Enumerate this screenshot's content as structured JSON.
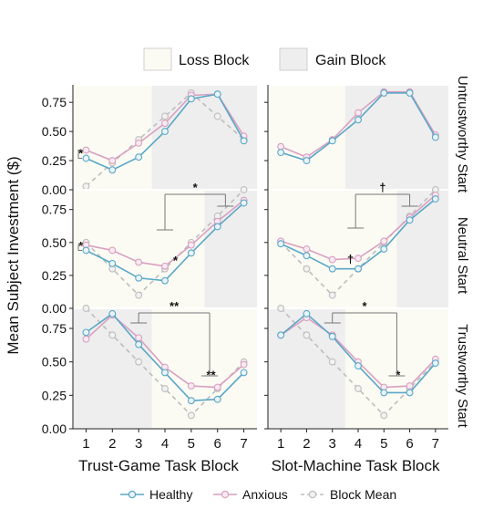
{
  "chart_data": {
    "type": "line",
    "ylabel": "Mean Subject Investment ($)",
    "y_ticks": [
      "0.00",
      "0.25",
      "0.50",
      "0.75"
    ],
    "ylim": [
      0,
      0.9
    ],
    "x_ticks": [
      "1",
      "2",
      "3",
      "4",
      "5",
      "6",
      "7"
    ],
    "xlim": [
      0.5,
      7.5
    ],
    "xlabels": [
      "Trust-Game Task Block",
      "Slot-Machine Task Block"
    ],
    "row_labels": [
      "Untrustworthy Start",
      "Neutral Start",
      "Trustworthy Start"
    ],
    "block_legend": [
      {
        "label": "Loss Block",
        "color": "#fbfbf4"
      },
      {
        "label": "Gain Block",
        "color": "#eeeeee"
      }
    ],
    "series_legend": [
      {
        "label": "Healthy",
        "color": "#5aa7c7",
        "dashed": false
      },
      {
        "label": "Anxious",
        "color": "#d9a0c0",
        "dashed": false
      },
      {
        "label": "Block Mean",
        "color": "#bdbdbd",
        "dashed": true
      }
    ],
    "colors": {
      "healthy": "#5aa7c7",
      "anxious": "#d9a0c0",
      "block_mean": "#bdbdbd",
      "gain_shade": "#eeeeee",
      "loss_shade": "#fbfbf4"
    },
    "panels": [
      {
        "row": 0,
        "col": 0,
        "gain_span": [
          3.5,
          7.5
        ],
        "loss_span": [
          0.5,
          3.5
        ],
        "healthy": [
          0.27,
          0.17,
          0.28,
          0.5,
          0.78,
          0.82,
          0.42
        ],
        "anxious": [
          0.34,
          0.25,
          0.4,
          0.57,
          0.81,
          0.82,
          0.46
        ],
        "block_mean": [
          0.03,
          0.23,
          0.43,
          0.63,
          0.83,
          0.63,
          0.43
        ],
        "annotations": [
          {
            "text": "*",
            "x": 0.8,
            "y": 0.31
          }
        ]
      },
      {
        "row": 0,
        "col": 1,
        "gain_span": [
          3.5,
          7.5
        ],
        "loss_span": [
          0.5,
          3.5
        ],
        "healthy": [
          0.32,
          0.25,
          0.42,
          0.6,
          0.83,
          0.83,
          0.45
        ],
        "anxious": [
          0.37,
          0.28,
          0.43,
          0.66,
          0.84,
          0.84,
          0.47
        ],
        "block_mean": [],
        "annotations": []
      },
      {
        "row": 1,
        "col": 0,
        "gain_span": [
          5.5,
          7.5
        ],
        "loss_span": [
          0.5,
          5.5
        ],
        "healthy": [
          0.44,
          0.34,
          0.23,
          0.21,
          0.42,
          0.62,
          0.8
        ],
        "anxious": [
          0.48,
          0.44,
          0.35,
          0.32,
          0.48,
          0.66,
          0.82
        ],
        "block_mean": [
          0.5,
          0.3,
          0.1,
          0.3,
          0.5,
          0.7,
          0.9
        ],
        "annotations": [
          {
            "text": "*",
            "x": 4.4,
            "y": 0.36
          },
          {
            "text": "*",
            "x": 0.8,
            "y": 0.47
          }
        ]
      },
      {
        "row": 1,
        "col": 1,
        "gain_span": [
          5.5,
          7.5
        ],
        "loss_span": [
          0.5,
          5.5
        ],
        "healthy": [
          0.49,
          0.4,
          0.3,
          0.3,
          0.45,
          0.67,
          0.83
        ],
        "anxious": [
          0.51,
          0.45,
          0.37,
          0.38,
          0.51,
          0.69,
          0.86
        ],
        "block_mean": [
          0.5,
          0.3,
          0.1,
          0.3,
          0.5,
          0.7,
          0.9
        ],
        "annotations": [
          {
            "text": "†",
            "x": 3.7,
            "y": 0.37
          }
        ]
      },
      {
        "row": 2,
        "col": 0,
        "gain_span": [
          0.5,
          3.5
        ],
        "loss_span": [
          3.5,
          7.5
        ],
        "healthy": [
          0.72,
          0.86,
          0.63,
          0.42,
          0.21,
          0.22,
          0.42
        ],
        "anxious": [
          0.67,
          0.85,
          0.68,
          0.46,
          0.32,
          0.31,
          0.48
        ],
        "block_mean": [
          0.9,
          0.7,
          0.5,
          0.3,
          0.1,
          0.3,
          0.5
        ],
        "annotations": [
          {
            "text": "**",
            "x": 5.75,
            "y": 0.4
          }
        ]
      },
      {
        "row": 2,
        "col": 1,
        "gain_span": [
          0.5,
          3.5
        ],
        "loss_span": [
          3.5,
          7.5
        ],
        "healthy": [
          0.7,
          0.86,
          0.69,
          0.47,
          0.27,
          0.27,
          0.49
        ],
        "anxious": [
          0.7,
          0.83,
          0.7,
          0.5,
          0.31,
          0.32,
          0.52
        ],
        "block_mean": [
          0.9,
          0.7,
          0.5,
          0.3,
          0.1,
          0.3,
          0.5
        ],
        "annotations": [
          {
            "text": "*",
            "x": 5.55,
            "y": 0.4
          }
        ]
      }
    ],
    "brackets": [
      {
        "col": 0,
        "label": "*",
        "y_label": 0.0,
        "row_from": 1,
        "x_from": 4.0,
        "x_to": 6.3
      },
      {
        "col": 1,
        "label": "†",
        "y_label": 0.0,
        "row_from": 1,
        "x_from": 3.9,
        "x_to": 6.0
      },
      {
        "col": 0,
        "label": "**",
        "y_label": 0.0,
        "row_from": 2,
        "x_from": 3.0,
        "x_to": 5.7
      },
      {
        "col": 1,
        "label": "*",
        "y_label": 0.0,
        "row_from": 2,
        "x_from": 3.0,
        "x_to": 5.5
      }
    ]
  }
}
